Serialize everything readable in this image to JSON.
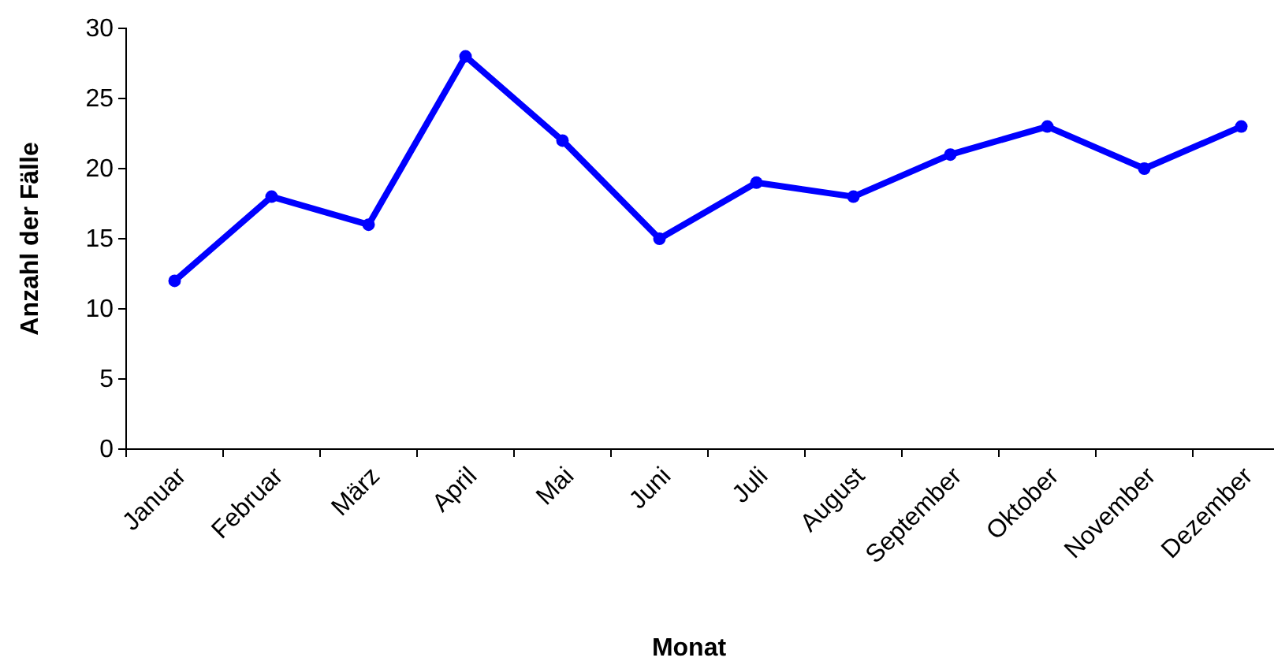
{
  "chart_data": {
    "type": "line",
    "xlabel": "Monat",
    "ylabel": "Anzahl der Fälle",
    "categories": [
      "Januar",
      "Februar",
      "März",
      "April",
      "Mai",
      "Juni",
      "Juli",
      "August",
      "September",
      "Oktober",
      "November",
      "Dezember"
    ],
    "series": [
      {
        "color": "#0000ff",
        "values": [
          12,
          18,
          16,
          28,
          22,
          15,
          19,
          18,
          21,
          23,
          20,
          23
        ]
      }
    ],
    "ylim": [
      0,
      30
    ],
    "yticks": [
      0,
      5,
      10,
      15,
      20,
      25,
      30
    ],
    "grid": false,
    "marker": "circle",
    "line_style": "solid"
  }
}
